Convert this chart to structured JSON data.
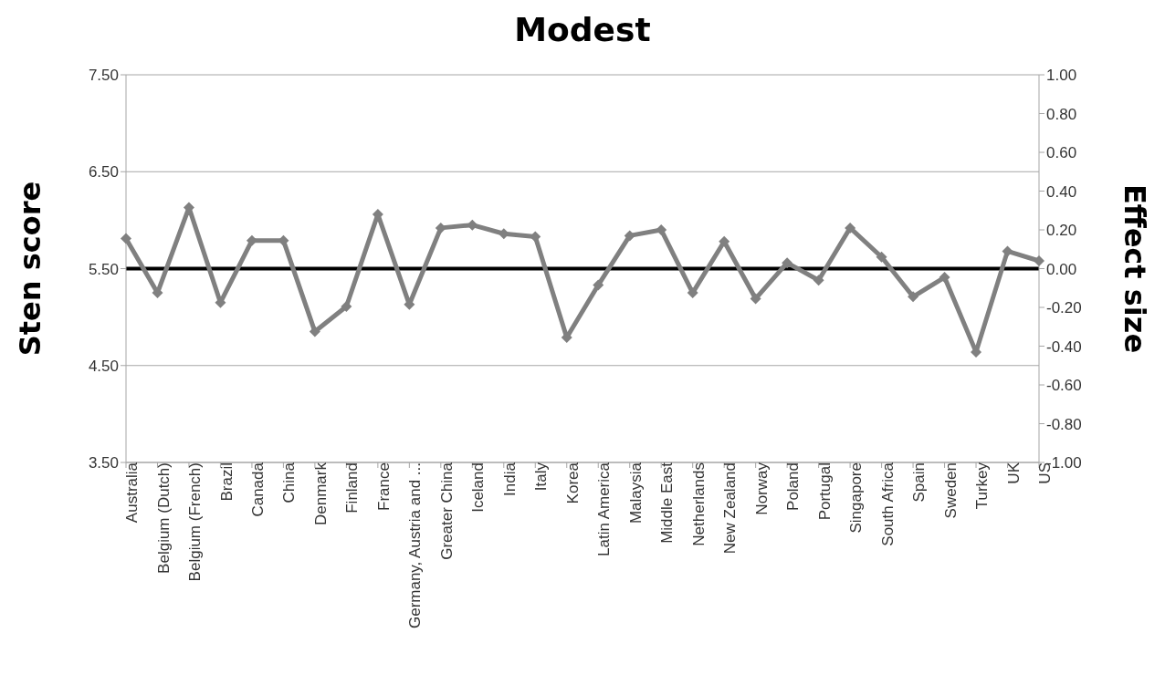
{
  "chart_data": {
    "type": "line",
    "title": "Modest",
    "ylabel": "Sten score",
    "y2label": "Effect size",
    "categories": [
      "Australia",
      "Belgium (Dutch)",
      "Belgium (French)",
      "Brazil",
      "Canada",
      "China",
      "Denmark",
      "Finland",
      "France",
      "Germany, Austria and ...",
      "Greater China",
      "Iceland",
      "India",
      "Italy",
      "Korea",
      "Latin America",
      "Malaysia",
      "Middle East",
      "Netherlands",
      "New Zealand",
      "Norway",
      "Poland",
      "Portugal",
      "Singapore",
      "South Africa",
      "Spain",
      "Sweden",
      "Turkey",
      "UK",
      "US"
    ],
    "series": [
      {
        "color": "#808080",
        "values": [
          5.81,
          5.25,
          6.13,
          5.15,
          5.79,
          5.79,
          4.85,
          5.11,
          6.06,
          5.13,
          5.92,
          5.95,
          5.86,
          5.83,
          4.79,
          5.33,
          5.84,
          5.9,
          5.25,
          5.78,
          5.19,
          5.56,
          5.38,
          5.92,
          5.62,
          5.21,
          5.41,
          4.64,
          5.68,
          5.58
        ]
      }
    ],
    "ylim": [
      3.5,
      7.5
    ],
    "yticks": [
      {
        "value": 3.5,
        "label": "3.50"
      },
      {
        "value": 4.5,
        "label": "4.50"
      },
      {
        "value": 5.5,
        "label": "5.50"
      },
      {
        "value": 6.5,
        "label": "6.50"
      },
      {
        "value": 7.5,
        "label": "7.50"
      }
    ],
    "y2lim": [
      -1,
      1
    ],
    "y2ticks": [
      {
        "value": -1,
        "label": "-1.00"
      },
      {
        "value": -0.8,
        "label": "-0.80"
      },
      {
        "value": -0.6,
        "label": "-0.60"
      },
      {
        "value": -0.4,
        "label": "-0.40"
      },
      {
        "value": -0.2,
        "label": "-0.20"
      },
      {
        "value": 0,
        "label": "0.00"
      },
      {
        "value": 0.2,
        "label": "0.20"
      },
      {
        "value": 0.4,
        "label": "0.40"
      },
      {
        "value": 0.6,
        "label": "0.60"
      },
      {
        "value": 0.8,
        "label": "0.80"
      },
      {
        "value": 1,
        "label": "1.00"
      }
    ],
    "ref_lines": [
      {
        "axis": "y",
        "value": 5.5,
        "color": "#000000"
      }
    ],
    "grid": "y",
    "legend": false,
    "marker": "diamond",
    "line_style": "solid"
  }
}
